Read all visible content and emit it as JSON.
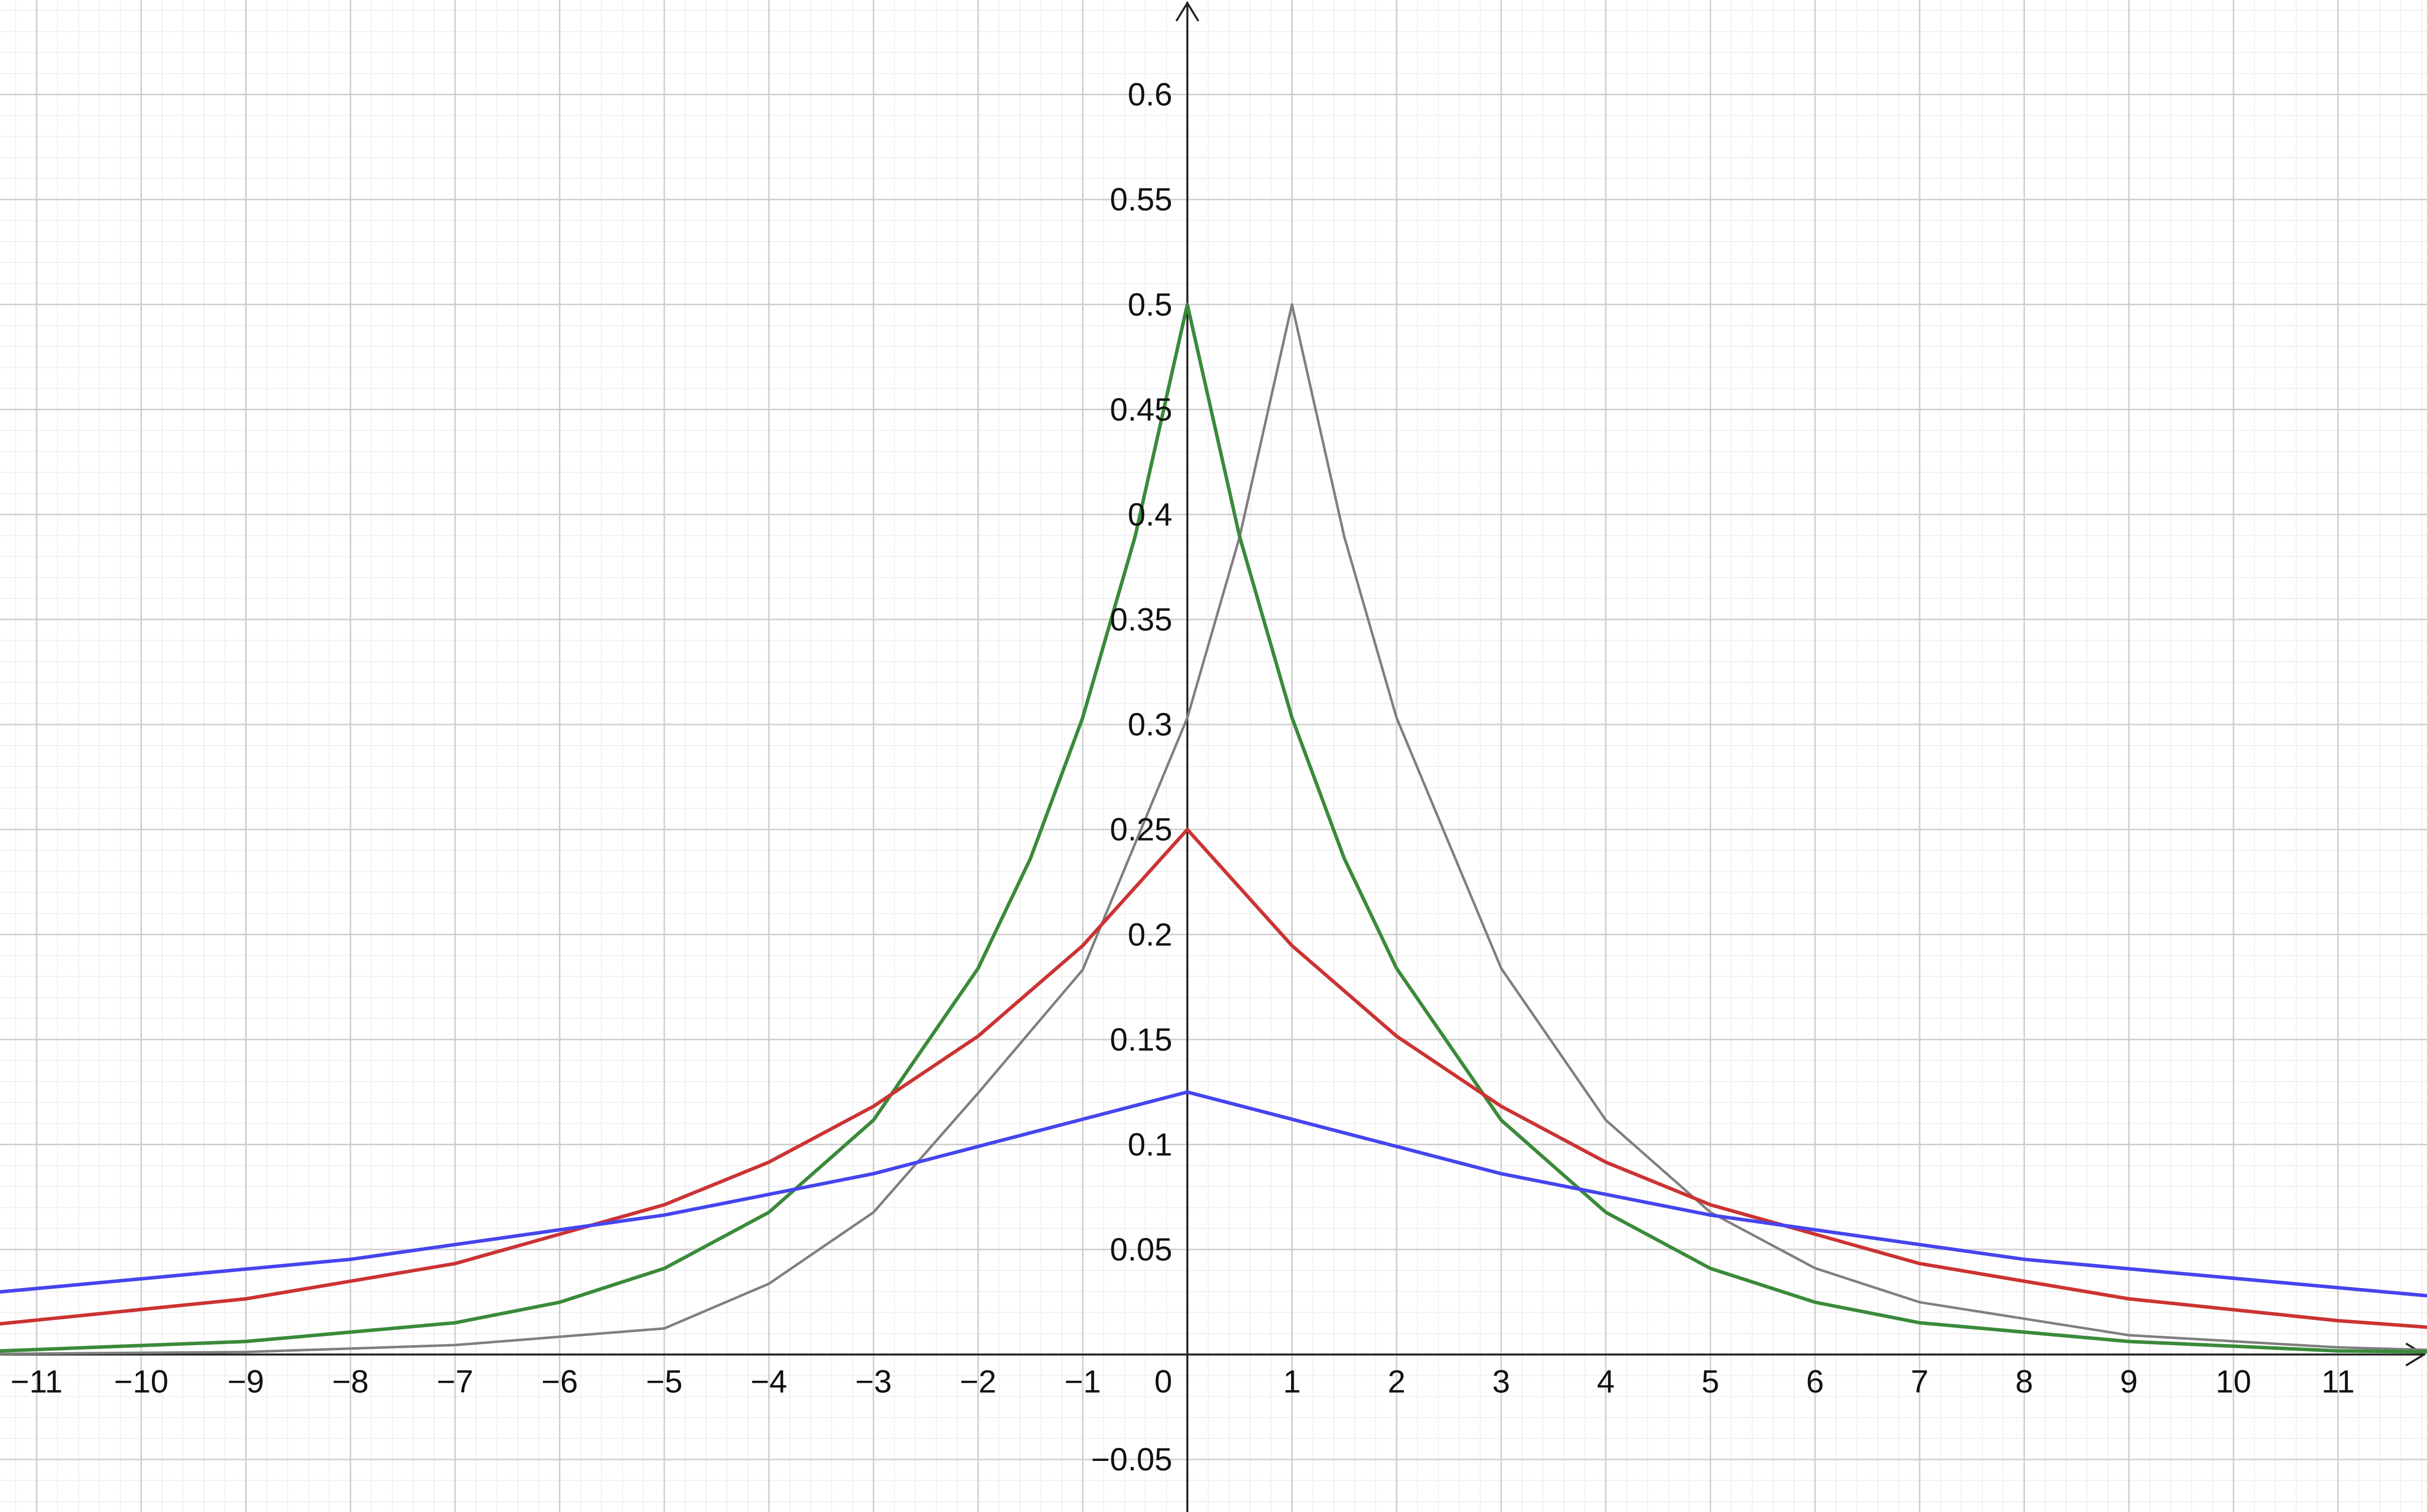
{
  "chart_data": {
    "type": "line",
    "title": "",
    "xlabel": "",
    "ylabel": "",
    "xlim": [
      -11.35,
      11.85
    ],
    "ylim": [
      -0.075,
      0.645
    ],
    "grid": true,
    "minor_grid": true,
    "x_ticks": [
      -11,
      -10,
      -9,
      -8,
      -7,
      -6,
      -5,
      -4,
      -3,
      -2,
      -1,
      0,
      1,
      2,
      3,
      4,
      5,
      6,
      7,
      8,
      9,
      10,
      11
    ],
    "x_tick_labels": [
      "−11",
      "−10",
      "−9",
      "−8",
      "−7",
      "−6",
      "−5",
      "−4",
      "−3",
      "−2",
      "−1",
      "0",
      "1",
      "2",
      "3",
      "4",
      "5",
      "6",
      "7",
      "8",
      "9",
      "10",
      "11"
    ],
    "y_ticks": [
      -0.05,
      0.05,
      0.1,
      0.15,
      0.2,
      0.25,
      0.3,
      0.35,
      0.4,
      0.45,
      0.5,
      0.55,
      0.6
    ],
    "y_tick_labels": [
      "−0.05",
      "0.05",
      "0.1",
      "0.15",
      "0.2",
      "0.25",
      "0.3",
      "0.35",
      "0.4",
      "0.45",
      "0.5",
      "0.55",
      "0.6"
    ],
    "series": [
      {
        "color": "#7f7f7f",
        "x": [
          -11.35,
          -9,
          -7,
          -5,
          -4,
          -3,
          -2,
          -1,
          0,
          0.5,
          1,
          1.5,
          2,
          3,
          4,
          5,
          6,
          7,
          9,
          11,
          11.85
        ],
        "values": [
          0.0003,
          0.0012,
          0.0045,
          0.0124,
          0.0337,
          0.0677,
          0.1245,
          0.1832,
          0.3032,
          0.3894,
          0.5,
          0.3894,
          0.3032,
          0.1839,
          0.1116,
          0.0677,
          0.0411,
          0.0249,
          0.0092,
          0.0034,
          0.0022
        ]
      },
      {
        "color": "#3a8a3a",
        "x": [
          -11.35,
          -9,
          -7,
          -6,
          -5,
          -4,
          -3,
          -2,
          -1.5,
          -1,
          -0.5,
          0,
          0.5,
          1,
          1.5,
          2,
          3,
          4,
          5,
          6,
          7,
          9,
          11,
          11.85
        ],
        "values": [
          0.0017,
          0.0062,
          0.0151,
          0.0249,
          0.041,
          0.0677,
          0.1116,
          0.1839,
          0.2362,
          0.3033,
          0.3894,
          0.5,
          0.3894,
          0.3033,
          0.2362,
          0.1839,
          0.1116,
          0.0677,
          0.041,
          0.0249,
          0.0151,
          0.0062,
          0.0017,
          0.0013
        ]
      },
      {
        "color": "#cc3333",
        "x": [
          -11.35,
          -9,
          -7,
          -5,
          -4,
          -3,
          -2,
          -1,
          0,
          1,
          2,
          3,
          4,
          5,
          7,
          9,
          11,
          11.85
        ],
        "values": [
          0.0146,
          0.0265,
          0.0433,
          0.0713,
          0.0916,
          0.1182,
          0.1516,
          0.1947,
          0.25,
          0.1947,
          0.1516,
          0.1182,
          0.0916,
          0.0713,
          0.0433,
          0.0265,
          0.0161,
          0.013
        ]
      },
      {
        "color": "#4545ee",
        "x": [
          -11.35,
          -8,
          -5,
          -3,
          0,
          3,
          5,
          8,
          11.85
        ],
        "values": [
          0.0298,
          0.0453,
          0.0664,
          0.0861,
          0.125,
          0.0861,
          0.0664,
          0.0453,
          0.028
        ]
      }
    ]
  }
}
